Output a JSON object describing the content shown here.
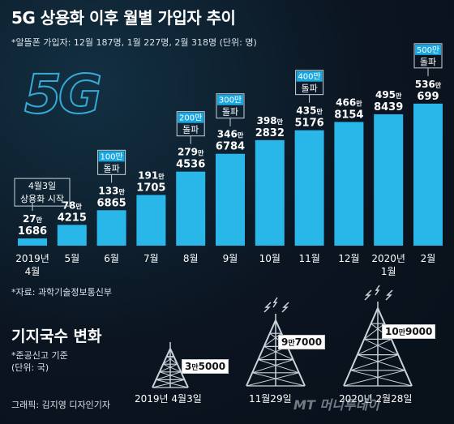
{
  "title": "5G 상용화 이후 월별 가입자 추이",
  "subtitle": "*알뜰폰 가입자: 12월 187명, 1월 227명, 2월 318명 (단위: 명)",
  "logo_text": "5G",
  "chart_data": {
    "type": "bar",
    "categories": [
      "2019년 4월",
      "5월",
      "6월",
      "7월",
      "8월",
      "9월",
      "10월",
      "11월",
      "12월",
      "2020년 1월",
      "2월"
    ],
    "category_lines": [
      [
        "2019년",
        "4월"
      ],
      [
        "5월"
      ],
      [
        "6월"
      ],
      [
        "7월"
      ],
      [
        "8월"
      ],
      [
        "9월"
      ],
      [
        "10월"
      ],
      [
        "11월"
      ],
      [
        "12월"
      ],
      [
        "2020년",
        "1월"
      ],
      [
        "2월"
      ]
    ],
    "values": [
      271686,
      784215,
      1336865,
      1911705,
      2794536,
      3466784,
      3982832,
      4355176,
      4668154,
      4958439,
      5360699
    ],
    "value_labels": [
      {
        "man": "27",
        "rest": "1686"
      },
      {
        "man": "78",
        "rest": "4215"
      },
      {
        "man": "133",
        "rest": "6865"
      },
      {
        "man": "191",
        "rest": "1705"
      },
      {
        "man": "279",
        "rest": "4536"
      },
      {
        "man": "346",
        "rest": "6784"
      },
      {
        "man": "398",
        "rest": "2832"
      },
      {
        "man": "435",
        "rest": "5176"
      },
      {
        "man": "466",
        "rest": "8154"
      },
      {
        "man": "495",
        "rest": "8439"
      },
      {
        "man": "536",
        "rest": "699"
      }
    ],
    "unit_man": "만",
    "annotations": [
      {
        "index": 0,
        "lines": [
          "4월3일",
          "상용화 시작"
        ],
        "style": "white"
      },
      {
        "index": 2,
        "lines": [
          "100만",
          "돌파"
        ],
        "style": "blue"
      },
      {
        "index": 4,
        "lines": [
          "200만",
          "돌파"
        ],
        "style": "blue"
      },
      {
        "index": 5,
        "lines": [
          "300만",
          "돌파"
        ],
        "style": "blue"
      },
      {
        "index": 7,
        "lines": [
          "400만",
          "돌파"
        ],
        "style": "blue"
      },
      {
        "index": 10,
        "lines": [
          "500만",
          "돌파"
        ],
        "style": "blue"
      }
    ],
    "bar_color": "#29b6e9",
    "highlight_color": "#41c4f2",
    "grid": false,
    "legend": "none"
  },
  "source": "*자료: 과학기술정보통신부",
  "towers": {
    "title": "기지국수 변화",
    "note_lines": [
      "*준공신고 기준",
      "(단위: 국)"
    ],
    "items": [
      {
        "date": "2019년 4월3일",
        "man": "3",
        "unit": "만",
        "rest": "5000"
      },
      {
        "date": "11월29일",
        "man": "9",
        "unit": "만",
        "rest": "7000"
      },
      {
        "date": "2020년 2월28일",
        "man": "10",
        "unit": "만",
        "rest": "9000"
      }
    ]
  },
  "credit": "그래픽: 김지영 디자인기자",
  "watermark": "MT 머니투데이",
  "colors": {
    "accent": "#29b6e9",
    "annotation_blue": "#1ba8e0",
    "background": "#0b1420"
  }
}
